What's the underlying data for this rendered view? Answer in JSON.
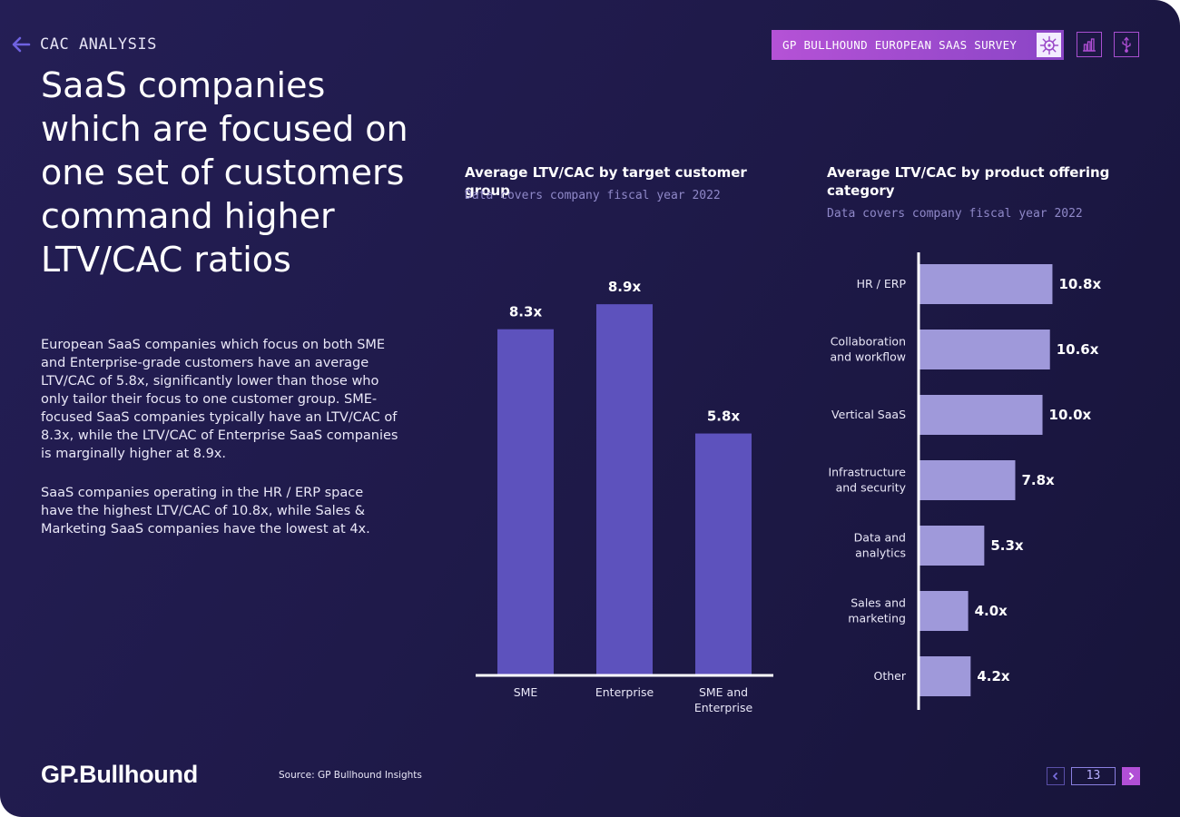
{
  "header": {
    "section": "CAC ANALYSIS",
    "survey_tag": "GP BULLHOUND EUROPEAN SAAS SURVEY"
  },
  "headline": "SaaS companies which are focused on one set of customers command higher LTV/CAC ratios",
  "body": {
    "para1": "European SaaS companies which focus on both SME and Enterprise-grade customers have an average LTV/CAC of 5.8x, significantly lower than those who only tailor their focus to one customer group. SME-focused SaaS companies typically have an LTV/CAC of 8.3x, while the LTV/CAC of Enterprise SaaS companies is marginally higher at 8.9x.",
    "para2": "SaaS companies operating in the HR / ERP space have the highest LTV/CAC of 10.8x, while Sales & Marketing SaaS companies have the lowest at 4x."
  },
  "colors": {
    "bar_primary": "#5d52bd",
    "bar_secondary": "#9f99da",
    "accent": "#b14fd6"
  },
  "chart_data": [
    {
      "type": "bar",
      "orientation": "vertical",
      "title": "Average LTV/CAC by target customer group",
      "subtitle": "Data covers company fiscal year 2022",
      "categories": [
        [
          "SME"
        ],
        [
          "Enterprise"
        ],
        [
          "SME and",
          "Enterprise"
        ]
      ],
      "values": [
        8.3,
        8.9,
        5.8
      ],
      "value_labels": [
        "8.3x",
        "8.9x",
        "5.8x"
      ],
      "ylim": [
        0,
        10.1
      ],
      "grid": false
    },
    {
      "type": "bar",
      "orientation": "horizontal",
      "title": "Average LTV/CAC by product offering category",
      "subtitle": "Data covers company fiscal year 2022",
      "categories": [
        [
          "HR / ERP"
        ],
        [
          "Collaboration",
          "and workflow"
        ],
        [
          "Vertical SaaS"
        ],
        [
          "Infrastructure",
          "and security"
        ],
        [
          "Data and",
          "analytics"
        ],
        [
          "Sales and",
          "marketing"
        ],
        [
          "Other"
        ]
      ],
      "values": [
        10.8,
        10.6,
        10.0,
        7.8,
        5.3,
        4.0,
        4.2
      ],
      "value_labels": [
        "10.8x",
        "10.6x",
        "10.0x",
        "7.8x",
        "5.3x",
        "4.0x",
        "4.2x"
      ],
      "xlim": [
        0,
        16.7
      ],
      "grid": false
    }
  ],
  "footer": {
    "logo": "GP.Bullhound",
    "source": "Source: GP Bullhound Insights",
    "page_number": "13"
  }
}
